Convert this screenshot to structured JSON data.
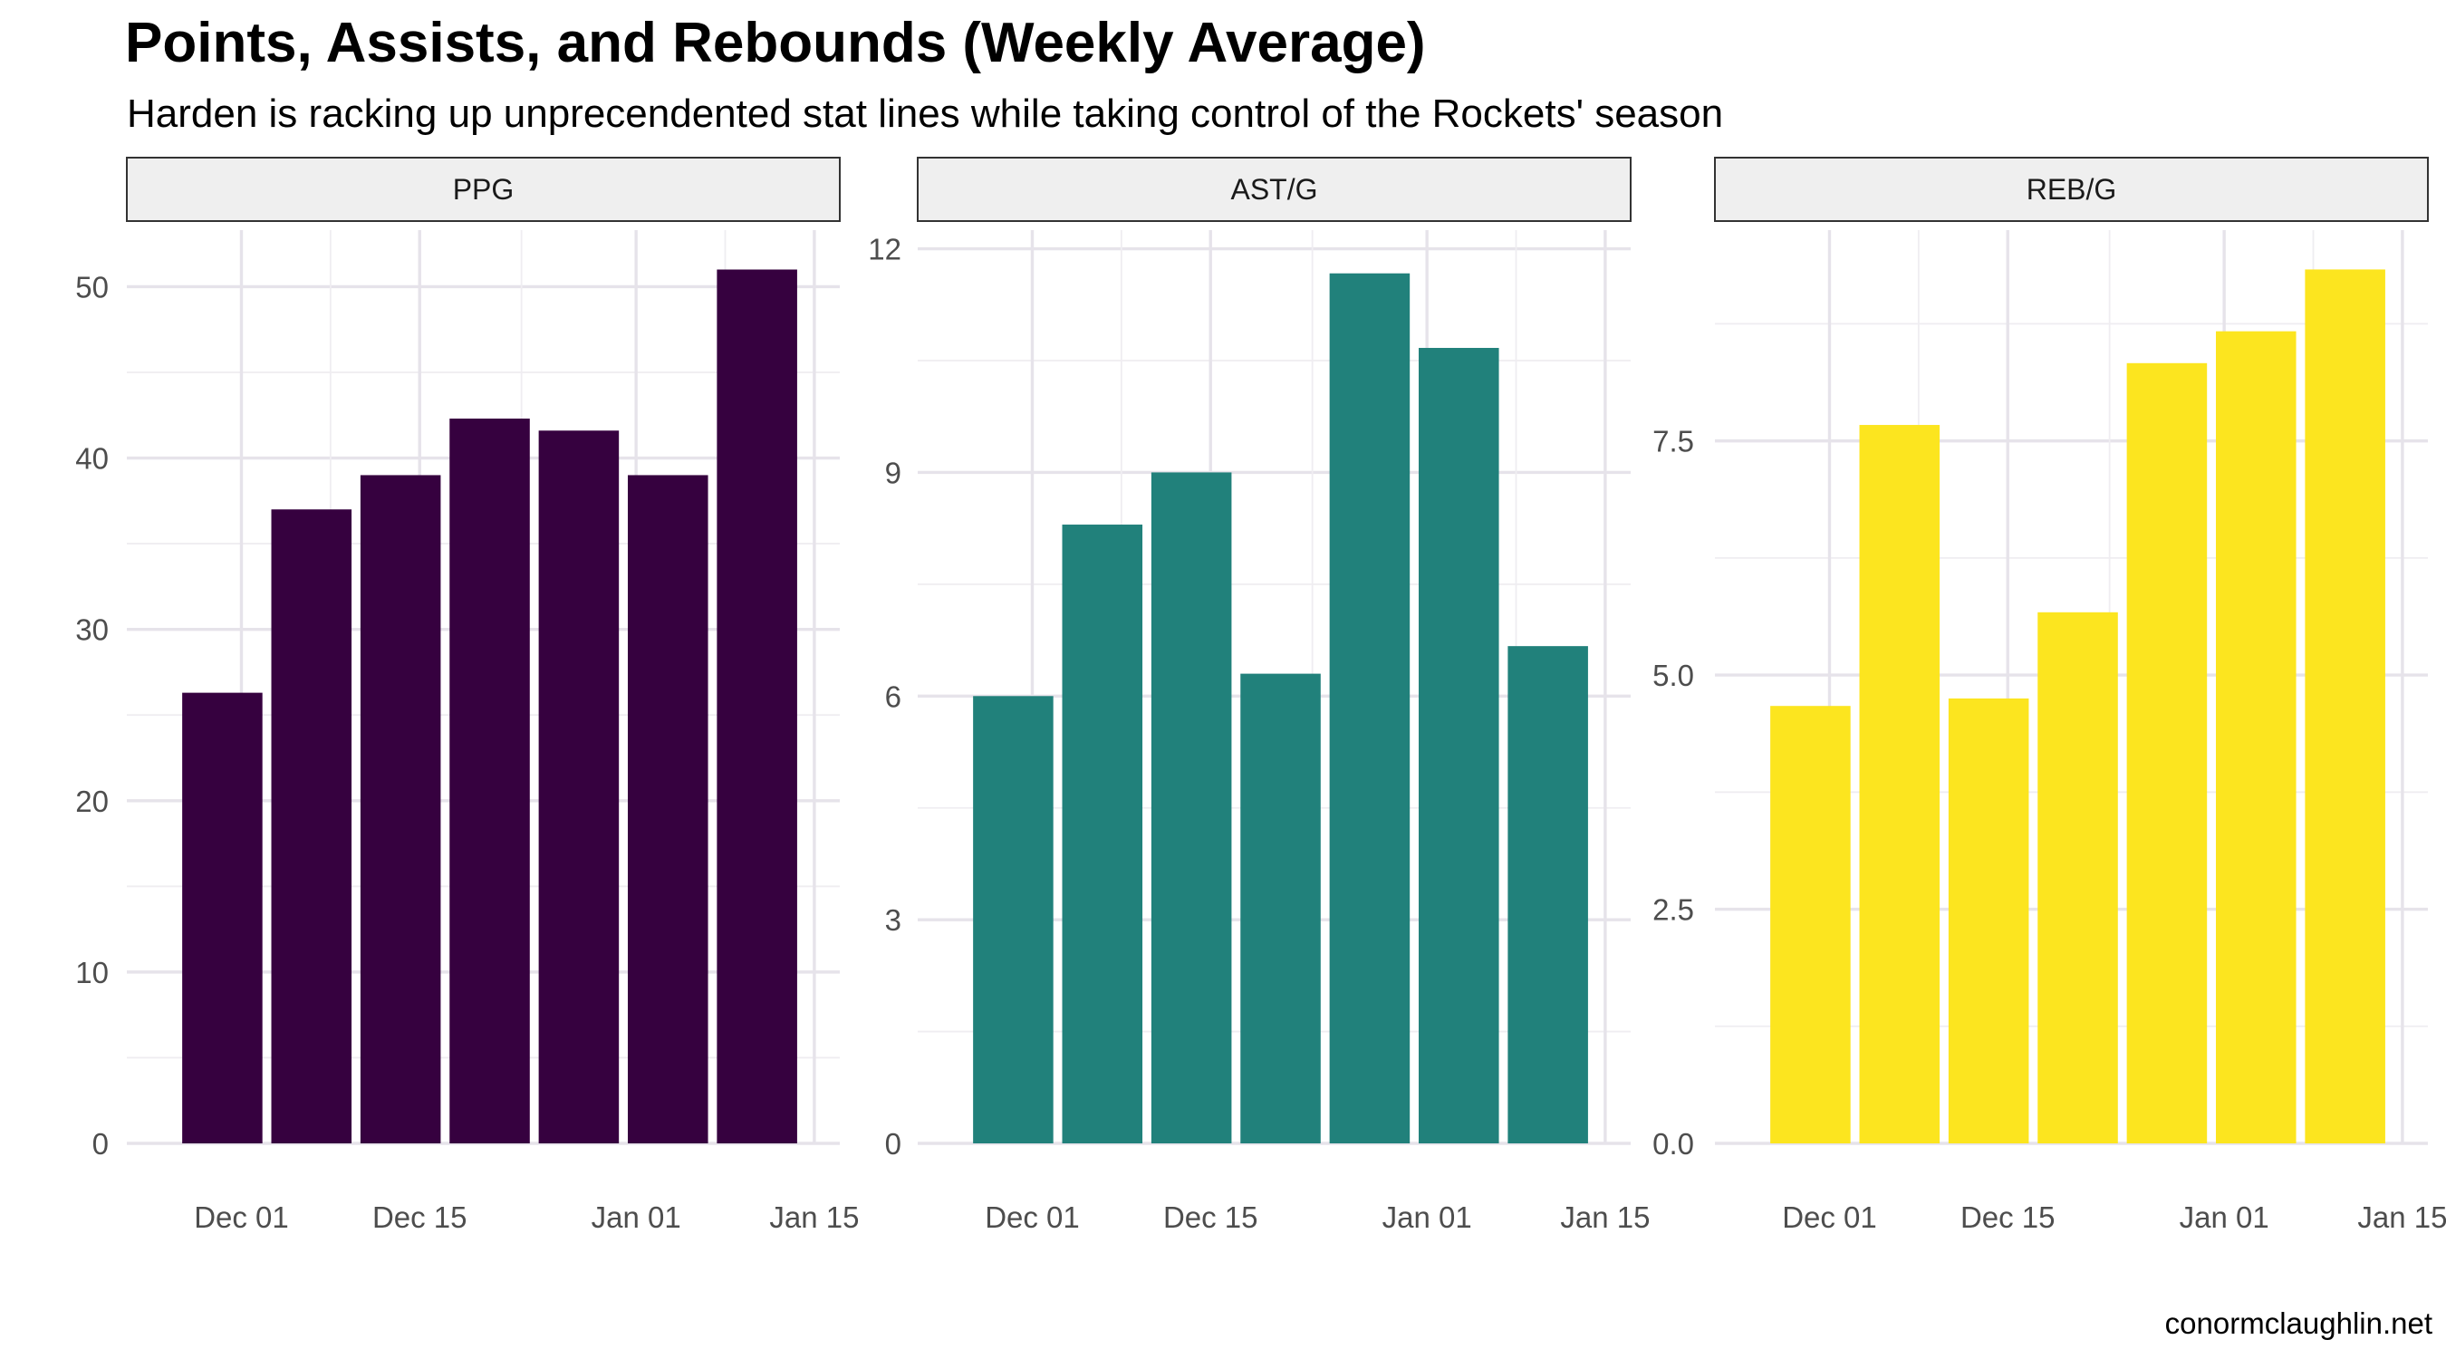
{
  "title": "Points, Assists, and Rebounds (Weekly Average)",
  "subtitle": "Harden is racking up unprecendented stat lines while taking control of the Rockets' season",
  "caption": "conormclaughlin.net",
  "chart_data": [
    {
      "type": "bar",
      "panel": "PPG",
      "color": "#36013f",
      "x": [
        "2018-11-26",
        "2018-12-03",
        "2018-12-10",
        "2018-12-17",
        "2018-12-24",
        "2018-12-31",
        "2019-01-07"
      ],
      "values": [
        26.3,
        37.0,
        39.0,
        42.3,
        41.6,
        39.0,
        51.0
      ],
      "x_ticks": [
        "Dec 01",
        "Dec 15",
        "Jan 01",
        "Jan 15"
      ],
      "y_ticks": [
        "0",
        "10",
        "20",
        "30",
        "40",
        "50"
      ],
      "ylim": [
        0,
        53.3
      ],
      "grid": true
    },
    {
      "type": "bar",
      "panel": "AST/G",
      "color": "#21817b",
      "x": [
        "2018-11-26",
        "2018-12-03",
        "2018-12-10",
        "2018-12-17",
        "2018-12-24",
        "2018-12-31",
        "2019-01-07"
      ],
      "values": [
        6.0,
        8.3,
        9.0,
        6.3,
        11.67,
        10.67,
        6.67
      ],
      "x_ticks": [
        "Dec 01",
        "Dec 15",
        "Jan 01",
        "Jan 15"
      ],
      "y_ticks": [
        "0",
        "3",
        "6",
        "9",
        "12"
      ],
      "ylim": [
        0,
        12.25
      ],
      "grid": true
    },
    {
      "type": "bar",
      "panel": "REB/G",
      "color": "#fce51f",
      "x": [
        "2018-11-26",
        "2018-12-03",
        "2018-12-10",
        "2018-12-17",
        "2018-12-24",
        "2018-12-31",
        "2019-01-07"
      ],
      "values": [
        4.67,
        7.67,
        4.75,
        5.67,
        8.33,
        8.67,
        9.33
      ],
      "x_ticks": [
        "Dec 01",
        "Dec 15",
        "Jan 01",
        "Jan 15"
      ],
      "y_ticks": [
        "0.0",
        "2.5",
        "5.0",
        "7.5"
      ],
      "ylim": [
        0,
        9.75
      ],
      "grid": true
    }
  ]
}
